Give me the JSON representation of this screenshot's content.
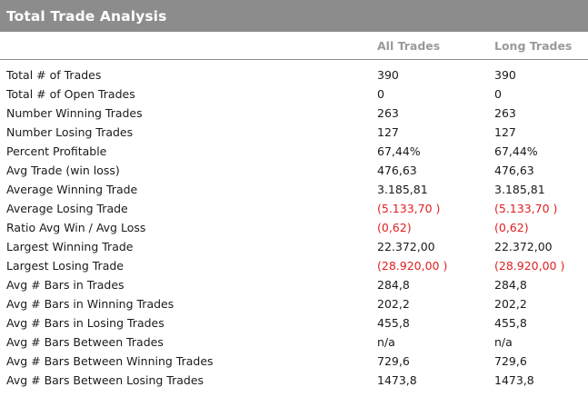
{
  "title": "Total Trade Analysis",
  "columns": [
    "All Trades",
    "Long Trades"
  ],
  "negative_color": "#e02020",
  "rows": [
    {
      "label": "Total # of Trades",
      "all": "390",
      "long": "390",
      "negative": false
    },
    {
      "label": "Total # of Open Trades",
      "all": "0",
      "long": "0",
      "negative": false
    },
    {
      "label": "Number Winning Trades",
      "all": "263",
      "long": "263",
      "negative": false
    },
    {
      "label": "Number Losing Trades",
      "all": "127",
      "long": "127",
      "negative": false
    },
    {
      "label": "Percent Profitable",
      "all": "67,44%",
      "long": "67,44%",
      "negative": false
    },
    {
      "label": "Avg Trade (win  loss)",
      "all": "476,63",
      "long": "476,63",
      "negative": false
    },
    {
      "label": "Average Winning Trade",
      "all": "3.185,81",
      "long": "3.185,81",
      "negative": false
    },
    {
      "label": "Average Losing Trade",
      "all": "(5.133,70 )",
      "long": "(5.133,70 )",
      "negative": true
    },
    {
      "label": "Ratio Avg Win / Avg Loss",
      "all": "(0,62)",
      "long": "(0,62)",
      "negative": true
    },
    {
      "label": "Largest Winning Trade",
      "all": "22.372,00",
      "long": "22.372,00",
      "negative": false
    },
    {
      "label": "Largest Losing Trade",
      "all": "(28.920,00 )",
      "long": "(28.920,00 )",
      "negative": true
    },
    {
      "label": "Avg # Bars in Trades",
      "all": "284,8",
      "long": "284,8",
      "negative": false
    },
    {
      "label": "Avg # Bars in Winning Trades",
      "all": "202,2",
      "long": "202,2",
      "negative": false
    },
    {
      "label": "Avg # Bars in Losing Trades",
      "all": "455,8",
      "long": "455,8",
      "negative": false
    },
    {
      "label": "Avg # Bars Between Trades",
      "all": "n/a",
      "long": "n/a",
      "negative": false
    },
    {
      "label": "Avg # Bars Between Winning Trades",
      "all": "729,6",
      "long": "729,6",
      "negative": false
    },
    {
      "label": "Avg # Bars Between Losing Trades",
      "all": "1473,8",
      "long": "1473,8",
      "negative": false
    }
  ]
}
